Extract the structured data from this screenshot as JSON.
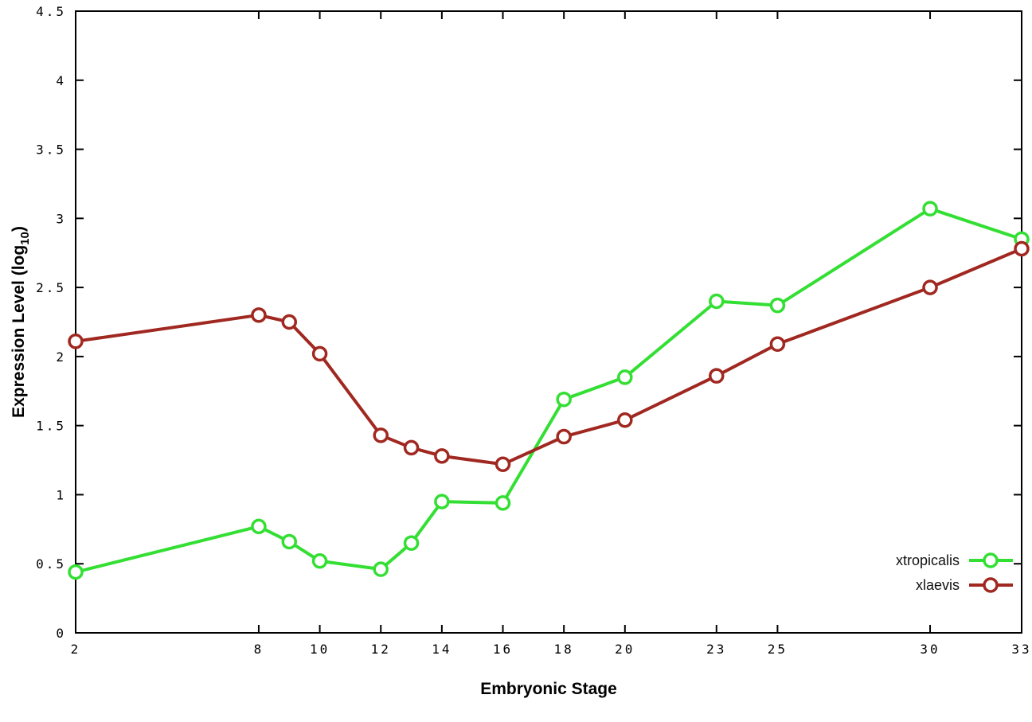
{
  "chart_data": {
    "type": "line",
    "title": "",
    "xlabel": "Embryonic Stage",
    "ylabel": "Expression Level (log_10)",
    "ylabel_parts": {
      "pre": "Expression Level (log",
      "sub": "10",
      "post": ")"
    },
    "xlim": [
      2,
      33
    ],
    "ylim": [
      0,
      4.5
    ],
    "xticks": [
      2,
      8,
      10,
      12,
      14,
      16,
      18,
      20,
      23,
      25,
      30,
      33
    ],
    "yticks": [
      0,
      0.5,
      1,
      1.5,
      2,
      2.5,
      3,
      3.5,
      4,
      4.5
    ],
    "grid": false,
    "legend_position": "bottom-right",
    "x": [
      2,
      8,
      9,
      10,
      12,
      13,
      14,
      16,
      18,
      20,
      23,
      25,
      30,
      33
    ],
    "series": [
      {
        "name": "xtropicalis",
        "color": "#33df33",
        "marker": "open-circle",
        "values": [
          0.44,
          0.77,
          0.66,
          0.52,
          0.46,
          0.65,
          0.95,
          0.94,
          1.69,
          1.85,
          2.4,
          2.37,
          3.07,
          2.85
        ]
      },
      {
        "name": "xlaevis",
        "color": "#a02820",
        "marker": "open-circle",
        "values": [
          2.11,
          2.3,
          2.25,
          2.02,
          1.43,
          1.34,
          1.28,
          1.22,
          1.42,
          1.54,
          1.86,
          2.09,
          2.5,
          2.78
        ]
      }
    ],
    "axis_color": "#000000",
    "background_color": "#ffffff"
  }
}
